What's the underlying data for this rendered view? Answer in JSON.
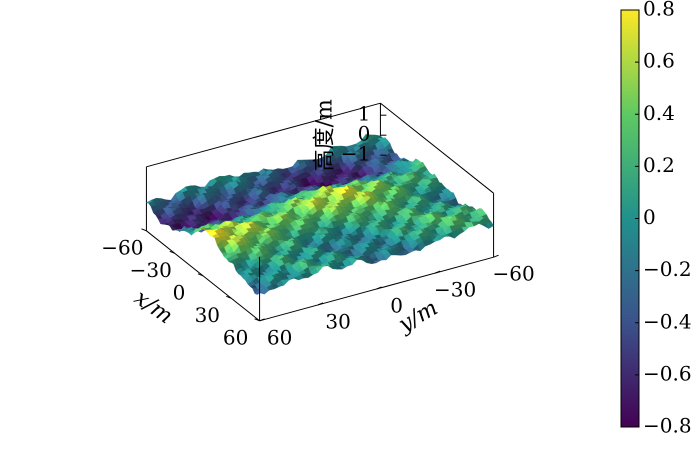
{
  "chart_data": {
    "type": "surface",
    "title": "",
    "xlabel": "x/m",
    "ylabel": "y/m",
    "zlabel": "高度/m",
    "xlim": [
      -60,
      60
    ],
    "ylim": [
      -60,
      60
    ],
    "zlim": [
      -1.6,
      1.6
    ],
    "x_ticks": [
      -60,
      -30,
      0,
      30,
      60
    ],
    "x_tick_labels": [
      "−60",
      "−30",
      "0",
      "30",
      "60"
    ],
    "y_ticks": [
      -60,
      -30,
      0,
      30,
      60
    ],
    "y_tick_labels": [
      "−60",
      "−30",
      "0",
      "30",
      "60"
    ],
    "z_ticks": [
      -1,
      0,
      1
    ],
    "z_tick_labels": [
      "−1",
      "0",
      "1"
    ],
    "colormap": "viridis",
    "colorbar": {
      "min": -0.8,
      "max": 0.8,
      "ticks": [
        0.8,
        0.6,
        0.4,
        0.2,
        0,
        -0.2,
        -0.4,
        -0.6,
        -0.8
      ],
      "tick_labels": [
        "0.8",
        "0.6",
        "0.4",
        "0.2",
        "0",
        "−0.2",
        "−0.4",
        "−0.6",
        "−0.8"
      ]
    },
    "colors": [
      "#440154",
      "#3b528b",
      "#21918c",
      "#5ec962",
      "#fde725"
    ],
    "grid": false,
    "surface": "random rough terrain height field with ridges running along the y-direction"
  }
}
